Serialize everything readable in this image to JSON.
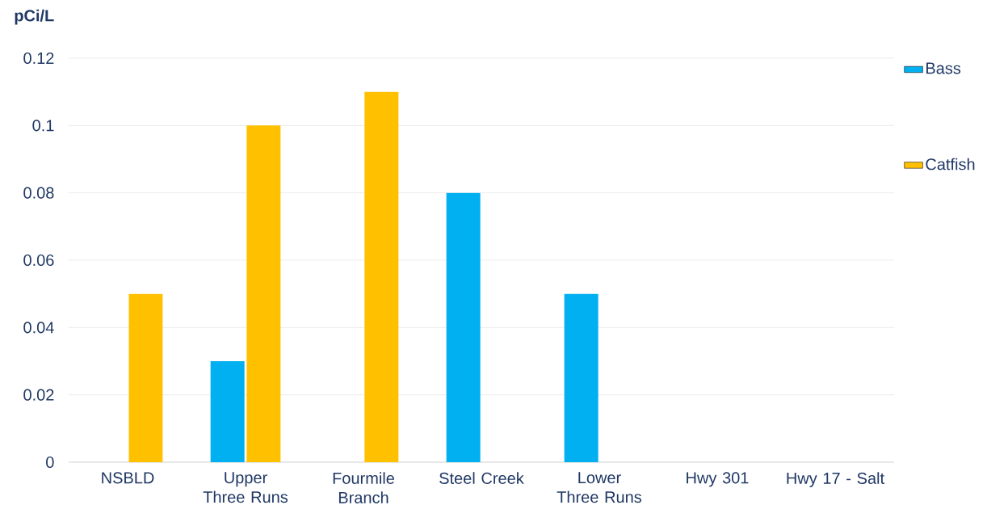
{
  "chart_data": {
    "type": "bar",
    "ylabel": "pCi/L",
    "categories": [
      "NSBLD",
      "Upper Three Runs",
      "Fourmile Branch",
      "Steel Creek",
      "Lower Three Runs",
      "Hwy 301",
      "Hwy 17 - Salt"
    ],
    "series": [
      {
        "name": "Bass",
        "color": "#00b0f0",
        "values": [
          0,
          0.03,
          0,
          0.08,
          0.05,
          0,
          0
        ]
      },
      {
        "name": "Catfish",
        "color": "#ffc000",
        "values": [
          0.05,
          0.1,
          0.11,
          0,
          0,
          0,
          0
        ]
      }
    ],
    "ylim": [
      0,
      0.12
    ],
    "yticks": [
      0,
      0.02,
      0.04,
      0.06,
      0.08,
      0.1,
      0.12
    ],
    "grid": "y",
    "legend": "top right"
  }
}
